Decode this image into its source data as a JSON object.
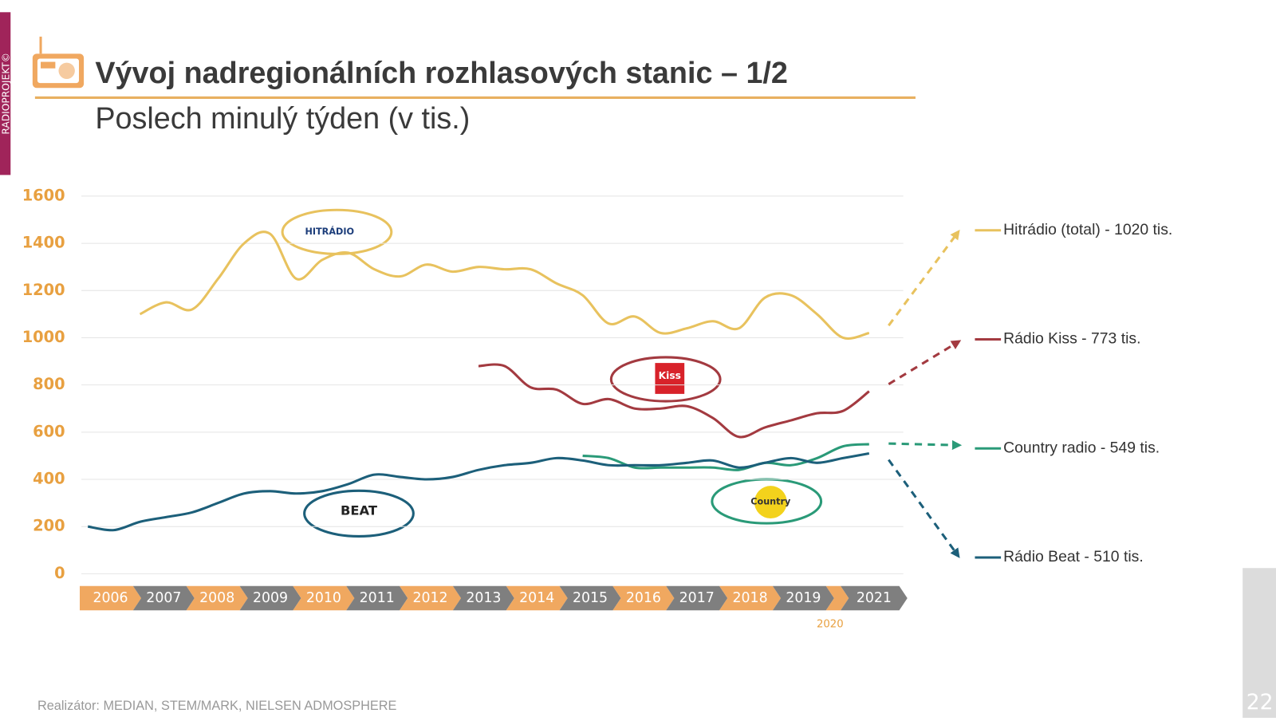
{
  "title": "Vývoj nadregionálních rozhlasových stanic – 1/2",
  "subtitle": "Poslech minulý týden (v tis.)",
  "side_label": "RADIOPROJEKT©",
  "source": "Realizátor: MEDIAN, STEM/MARK, NIELSEN ADMOSPHERE",
  "page_number": "22",
  "chart_data": {
    "type": "line",
    "categories": [
      "2006",
      null,
      "2007",
      null,
      "2008",
      null,
      "2009",
      null,
      "2010",
      null,
      "2011",
      null,
      "2012",
      null,
      "2013",
      null,
      "2014",
      null,
      "2015",
      null,
      "2016",
      null,
      "2017",
      null,
      "2018",
      null,
      "2019",
      null,
      "2020",
      null,
      "2021"
    ],
    "ylim": [
      0,
      1600
    ],
    "yticks": [
      0,
      200,
      400,
      600,
      800,
      1000,
      1200,
      1400,
      1600
    ],
    "grid": true,
    "logos": [
      "HITRÁDIO",
      "Kiss",
      "BEAT",
      "Country"
    ],
    "series": [
      {
        "name": "Hitrádio (total) - 1020 tis.",
        "color": "#e8c25e",
        "values": [
          null,
          null,
          1100,
          1150,
          1120,
          1250,
          1400,
          1440,
          1250,
          1330,
          1360,
          1290,
          1260,
          1310,
          1280,
          1300,
          1290,
          1290,
          1230,
          1180,
          1060,
          1090,
          1020,
          1040,
          1070,
          1040,
          1170,
          1180,
          1100,
          1000,
          1020
        ]
      },
      {
        "name": "Rádio Kiss - 773 tis.",
        "color": "#a33a40",
        "values": [
          null,
          null,
          null,
          null,
          null,
          null,
          null,
          null,
          null,
          null,
          null,
          null,
          null,
          null,
          null,
          880,
          880,
          790,
          780,
          720,
          740,
          700,
          700,
          710,
          660,
          580,
          620,
          650,
          680,
          690,
          773
        ]
      },
      {
        "name": "Country radio - 549 tis.",
        "color": "#2a9a78",
        "values": [
          null,
          null,
          null,
          null,
          null,
          null,
          null,
          null,
          null,
          null,
          null,
          null,
          null,
          null,
          null,
          null,
          null,
          null,
          null,
          500,
          490,
          450,
          450,
          450,
          450,
          440,
          470,
          460,
          490,
          540,
          549
        ]
      },
      {
        "name": "Rádio Beat - 510 tis.",
        "color": "#1c5f7a",
        "values": [
          200,
          185,
          220,
          240,
          260,
          300,
          340,
          350,
          340,
          350,
          380,
          420,
          410,
          400,
          410,
          440,
          460,
          470,
          490,
          480,
          460,
          460,
          460,
          470,
          480,
          450,
          470,
          490,
          470,
          490,
          510
        ]
      }
    ]
  }
}
